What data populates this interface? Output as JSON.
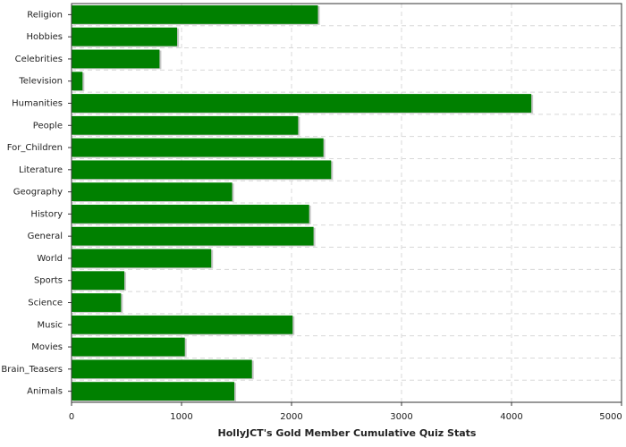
{
  "chart_data": {
    "type": "bar",
    "orientation": "horizontal",
    "x_label": "HollyJCT's Gold Member Cumulative Quiz Stats",
    "categories": [
      "Religion",
      "Hobbies",
      "Celebrities",
      "Television",
      "Humanities",
      "People",
      "For_Children",
      "Literature",
      "Geography",
      "History",
      "General",
      "World",
      "Sports",
      "Science",
      "Music",
      "Movies",
      "Brain_Teasers",
      "Animals"
    ],
    "values": [
      2240,
      960,
      800,
      100,
      4180,
      2060,
      2290,
      2360,
      1460,
      2160,
      2200,
      1270,
      480,
      450,
      2010,
      1030,
      1640,
      1480
    ],
    "color": "#008000",
    "xlim": [
      0,
      5000
    ],
    "xticks": [
      0,
      1000,
      2000,
      3000,
      4000,
      5000
    ],
    "grid": true
  }
}
